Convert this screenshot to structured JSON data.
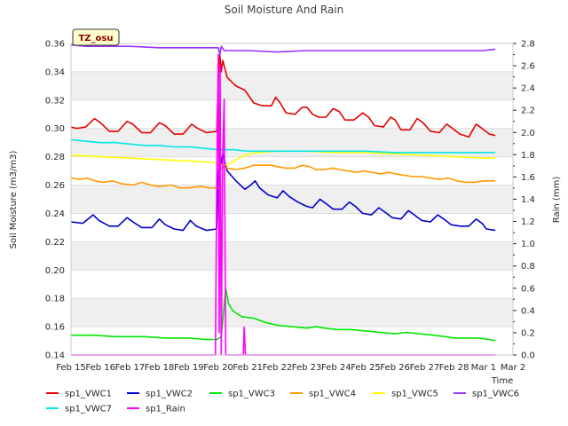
{
  "chart_data": {
    "type": "line",
    "title": "Soil Moisture And Rain",
    "badge": "TZ_osu",
    "xlabel": "Time",
    "ylabel_left": "Soil Moisture (m3/m3)",
    "ylabel_right": "Rain (mm)",
    "x_tick_labels": [
      "Feb 15",
      "Feb 16",
      "Feb 17",
      "Feb 18",
      "Feb 19",
      "Feb 20",
      "Feb 21",
      "Feb 22",
      "Feb 23",
      "Feb 24",
      "Feb 25",
      "Feb 26",
      "Feb 27",
      "Feb 28",
      "Mar 1",
      "Mar 2"
    ],
    "xlim_days": [
      0,
      15
    ],
    "ylim_left": [
      0.14,
      0.36
    ],
    "ylim_right": [
      0.0,
      2.8
    ],
    "y_ticks_left": [
      "0.14",
      "0.16",
      "0.18",
      "0.20",
      "0.22",
      "0.24",
      "0.26",
      "0.28",
      "0.30",
      "0.32",
      "0.34",
      "0.36"
    ],
    "y_ticks_right": [
      "0.0",
      "0.2",
      "0.4",
      "0.6",
      "0.8",
      "1.0",
      "1.2",
      "1.4",
      "1.6",
      "1.8",
      "2.0",
      "2.2",
      "2.4",
      "2.6",
      "2.8"
    ],
    "grid": "horizontal bands",
    "legend_position": "bottom",
    "series": [
      {
        "name": "sp1_VWC1",
        "color": "#e60000",
        "axis": "left",
        "points": [
          [
            0,
            0.301
          ],
          [
            0.2,
            0.3
          ],
          [
            0.5,
            0.301
          ],
          [
            0.8,
            0.307
          ],
          [
            1.0,
            0.304
          ],
          [
            1.3,
            0.298
          ],
          [
            1.6,
            0.298
          ],
          [
            1.9,
            0.305
          ],
          [
            2.1,
            0.303
          ],
          [
            2.4,
            0.297
          ],
          [
            2.7,
            0.297
          ],
          [
            3.0,
            0.304
          ],
          [
            3.2,
            0.302
          ],
          [
            3.5,
            0.296
          ],
          [
            3.8,
            0.296
          ],
          [
            4.1,
            0.303
          ],
          [
            4.3,
            0.3
          ],
          [
            4.6,
            0.297
          ],
          [
            4.95,
            0.298
          ],
          [
            5.0,
            0.335
          ],
          [
            5.05,
            0.352
          ],
          [
            5.1,
            0.34
          ],
          [
            5.15,
            0.348
          ],
          [
            5.3,
            0.336
          ],
          [
            5.6,
            0.33
          ],
          [
            5.9,
            0.327
          ],
          [
            6.2,
            0.318
          ],
          [
            6.5,
            0.316
          ],
          [
            6.8,
            0.316
          ],
          [
            6.95,
            0.322
          ],
          [
            7.1,
            0.318
          ],
          [
            7.3,
            0.311
          ],
          [
            7.6,
            0.31
          ],
          [
            7.85,
            0.315
          ],
          [
            8.0,
            0.315
          ],
          [
            8.2,
            0.31
          ],
          [
            8.4,
            0.308
          ],
          [
            8.65,
            0.308
          ],
          [
            8.9,
            0.314
          ],
          [
            9.1,
            0.312
          ],
          [
            9.3,
            0.306
          ],
          [
            9.6,
            0.306
          ],
          [
            9.9,
            0.311
          ],
          [
            10.1,
            0.308
          ],
          [
            10.3,
            0.302
          ],
          [
            10.6,
            0.301
          ],
          [
            10.85,
            0.308
          ],
          [
            11.0,
            0.306
          ],
          [
            11.2,
            0.299
          ],
          [
            11.5,
            0.299
          ],
          [
            11.75,
            0.307
          ],
          [
            11.95,
            0.304
          ],
          [
            12.2,
            0.298
          ],
          [
            12.5,
            0.297
          ],
          [
            12.75,
            0.303
          ],
          [
            12.95,
            0.3
          ],
          [
            13.2,
            0.296
          ],
          [
            13.5,
            0.294
          ],
          [
            13.75,
            0.303
          ],
          [
            13.95,
            0.3
          ],
          [
            14.2,
            0.296
          ],
          [
            14.4,
            0.295
          ]
        ]
      },
      {
        "name": "sp1_VWC2",
        "color": "#0000cc",
        "axis": "left",
        "points": [
          [
            0,
            0.234
          ],
          [
            0.4,
            0.233
          ],
          [
            0.75,
            0.239
          ],
          [
            0.95,
            0.235
          ],
          [
            1.3,
            0.231
          ],
          [
            1.6,
            0.231
          ],
          [
            1.9,
            0.237
          ],
          [
            2.1,
            0.234
          ],
          [
            2.4,
            0.23
          ],
          [
            2.75,
            0.23
          ],
          [
            3.0,
            0.236
          ],
          [
            3.2,
            0.232
          ],
          [
            3.5,
            0.229
          ],
          [
            3.8,
            0.228
          ],
          [
            4.05,
            0.235
          ],
          [
            4.25,
            0.231
          ],
          [
            4.6,
            0.228
          ],
          [
            4.95,
            0.229
          ],
          [
            5.0,
            0.27
          ],
          [
            5.05,
            0.283
          ],
          [
            5.1,
            0.275
          ],
          [
            5.15,
            0.282
          ],
          [
            5.3,
            0.27
          ],
          [
            5.6,
            0.263
          ],
          [
            5.9,
            0.257
          ],
          [
            6.1,
            0.26
          ],
          [
            6.25,
            0.263
          ],
          [
            6.4,
            0.258
          ],
          [
            6.7,
            0.253
          ],
          [
            7.0,
            0.251
          ],
          [
            7.2,
            0.256
          ],
          [
            7.4,
            0.252
          ],
          [
            7.7,
            0.248
          ],
          [
            8.0,
            0.245
          ],
          [
            8.2,
            0.244
          ],
          [
            8.45,
            0.25
          ],
          [
            8.65,
            0.247
          ],
          [
            8.9,
            0.243
          ],
          [
            9.2,
            0.243
          ],
          [
            9.45,
            0.248
          ],
          [
            9.65,
            0.245
          ],
          [
            9.9,
            0.24
          ],
          [
            10.2,
            0.239
          ],
          [
            10.45,
            0.244
          ],
          [
            10.65,
            0.241
          ],
          [
            10.9,
            0.237
          ],
          [
            11.2,
            0.236
          ],
          [
            11.45,
            0.242
          ],
          [
            11.65,
            0.239
          ],
          [
            11.9,
            0.235
          ],
          [
            12.2,
            0.234
          ],
          [
            12.45,
            0.239
          ],
          [
            12.65,
            0.236
          ],
          [
            12.9,
            0.232
          ],
          [
            13.2,
            0.231
          ],
          [
            13.5,
            0.231
          ],
          [
            13.75,
            0.236
          ],
          [
            13.95,
            0.233
          ],
          [
            14.1,
            0.229
          ],
          [
            14.4,
            0.228
          ]
        ]
      },
      {
        "name": "sp1_VWC3",
        "color": "#00e600",
        "axis": "left",
        "points": [
          [
            0,
            0.154
          ],
          [
            0.8,
            0.154
          ],
          [
            1.5,
            0.153
          ],
          [
            2.5,
            0.153
          ],
          [
            3.2,
            0.152
          ],
          [
            4.0,
            0.152
          ],
          [
            4.6,
            0.151
          ],
          [
            4.95,
            0.151
          ],
          [
            5.1,
            0.153
          ],
          [
            5.2,
            0.175
          ],
          [
            5.25,
            0.187
          ],
          [
            5.35,
            0.176
          ],
          [
            5.5,
            0.171
          ],
          [
            5.8,
            0.167
          ],
          [
            6.2,
            0.166
          ],
          [
            6.6,
            0.163
          ],
          [
            7.0,
            0.161
          ],
          [
            7.5,
            0.16
          ],
          [
            8.0,
            0.159
          ],
          [
            8.3,
            0.16
          ],
          [
            8.6,
            0.159
          ],
          [
            9.0,
            0.158
          ],
          [
            9.5,
            0.158
          ],
          [
            10.0,
            0.157
          ],
          [
            10.5,
            0.156
          ],
          [
            11.0,
            0.155
          ],
          [
            11.4,
            0.156
          ],
          [
            11.8,
            0.155
          ],
          [
            12.3,
            0.154
          ],
          [
            12.7,
            0.153
          ],
          [
            13.0,
            0.152
          ],
          [
            13.5,
            0.152
          ],
          [
            13.8,
            0.152
          ],
          [
            14.2,
            0.151
          ],
          [
            14.4,
            0.15
          ]
        ]
      },
      {
        "name": "sp1_VWC4",
        "color": "#ff9900",
        "axis": "left",
        "points": [
          [
            0,
            0.265
          ],
          [
            0.3,
            0.264
          ],
          [
            0.55,
            0.265
          ],
          [
            0.8,
            0.263
          ],
          [
            1.1,
            0.262
          ],
          [
            1.4,
            0.263
          ],
          [
            1.7,
            0.261
          ],
          [
            2.1,
            0.26
          ],
          [
            2.4,
            0.262
          ],
          [
            2.7,
            0.26
          ],
          [
            3.0,
            0.259
          ],
          [
            3.4,
            0.26
          ],
          [
            3.7,
            0.258
          ],
          [
            4.0,
            0.258
          ],
          [
            4.4,
            0.259
          ],
          [
            4.7,
            0.258
          ],
          [
            5.0,
            0.258
          ],
          [
            5.05,
            0.27
          ],
          [
            5.15,
            0.273
          ],
          [
            5.3,
            0.272
          ],
          [
            5.6,
            0.271
          ],
          [
            5.9,
            0.272
          ],
          [
            6.2,
            0.274
          ],
          [
            6.5,
            0.274
          ],
          [
            6.8,
            0.274
          ],
          [
            7.0,
            0.273
          ],
          [
            7.3,
            0.272
          ],
          [
            7.6,
            0.272
          ],
          [
            7.85,
            0.274
          ],
          [
            8.1,
            0.273
          ],
          [
            8.3,
            0.271
          ],
          [
            8.6,
            0.271
          ],
          [
            8.9,
            0.272
          ],
          [
            9.1,
            0.271
          ],
          [
            9.4,
            0.27
          ],
          [
            9.7,
            0.269
          ],
          [
            9.95,
            0.27
          ],
          [
            10.2,
            0.269
          ],
          [
            10.5,
            0.268
          ],
          [
            10.8,
            0.269
          ],
          [
            11.0,
            0.268
          ],
          [
            11.3,
            0.267
          ],
          [
            11.6,
            0.266
          ],
          [
            11.9,
            0.266
          ],
          [
            12.2,
            0.265
          ],
          [
            12.5,
            0.264
          ],
          [
            12.8,
            0.265
          ],
          [
            13.1,
            0.263
          ],
          [
            13.4,
            0.262
          ],
          [
            13.7,
            0.262
          ],
          [
            14.0,
            0.263
          ],
          [
            14.4,
            0.263
          ]
        ]
      },
      {
        "name": "sp1_VWC5",
        "color": "#ffff00",
        "axis": "left",
        "points": [
          [
            0,
            0.281
          ],
          [
            1.0,
            0.28
          ],
          [
            2.0,
            0.279
          ],
          [
            3.0,
            0.278
          ],
          [
            4.0,
            0.277
          ],
          [
            4.8,
            0.276
          ],
          [
            5.0,
            0.275
          ],
          [
            5.3,
            0.274
          ],
          [
            5.6,
            0.278
          ],
          [
            5.9,
            0.281
          ],
          [
            6.3,
            0.283
          ],
          [
            7.0,
            0.284
          ],
          [
            8.0,
            0.284
          ],
          [
            9.0,
            0.283
          ],
          [
            10.0,
            0.283
          ],
          [
            11.0,
            0.282
          ],
          [
            12.0,
            0.281
          ],
          [
            13.0,
            0.28
          ],
          [
            14.0,
            0.279
          ],
          [
            14.4,
            0.279
          ]
        ]
      },
      {
        "name": "sp1_VWC6",
        "color": "#9933ff",
        "axis": "left",
        "points": [
          [
            0,
            0.359
          ],
          [
            0.5,
            0.358
          ],
          [
            1.0,
            0.358
          ],
          [
            2.0,
            0.358
          ],
          [
            3.0,
            0.357
          ],
          [
            4.0,
            0.357
          ],
          [
            4.9,
            0.357
          ],
          [
            5.0,
            0.357
          ],
          [
            5.05,
            0.352
          ],
          [
            5.1,
            0.358
          ],
          [
            5.2,
            0.355
          ],
          [
            5.5,
            0.355
          ],
          [
            6.0,
            0.355
          ],
          [
            7.0,
            0.354
          ],
          [
            8.0,
            0.355
          ],
          [
            9.0,
            0.355
          ],
          [
            10.0,
            0.355
          ],
          [
            11.0,
            0.355
          ],
          [
            12.0,
            0.355
          ],
          [
            13.0,
            0.355
          ],
          [
            14.0,
            0.355
          ],
          [
            14.4,
            0.356
          ]
        ]
      },
      {
        "name": "sp1_VWC7",
        "color": "#00e6e6",
        "axis": "left",
        "points": [
          [
            0,
            0.292
          ],
          [
            0.5,
            0.291
          ],
          [
            1.0,
            0.29
          ],
          [
            1.5,
            0.29
          ],
          [
            2.0,
            0.289
          ],
          [
            2.5,
            0.288
          ],
          [
            3.0,
            0.288
          ],
          [
            3.5,
            0.287
          ],
          [
            4.0,
            0.287
          ],
          [
            4.5,
            0.286
          ],
          [
            5.0,
            0.285
          ],
          [
            5.5,
            0.285
          ],
          [
            6.0,
            0.284
          ],
          [
            6.5,
            0.284
          ],
          [
            7.0,
            0.284
          ],
          [
            8.0,
            0.284
          ],
          [
            9.0,
            0.284
          ],
          [
            10.0,
            0.284
          ],
          [
            11.0,
            0.283
          ],
          [
            12.0,
            0.283
          ],
          [
            13.0,
            0.283
          ],
          [
            14.0,
            0.283
          ],
          [
            14.4,
            0.283
          ]
        ]
      },
      {
        "name": "sp1_Rain",
        "color": "#ff00ff",
        "axis": "right",
        "points": [
          [
            0,
            0.0
          ],
          [
            4.9,
            0.0
          ],
          [
            4.95,
            1.6
          ],
          [
            5.0,
            2.7
          ],
          [
            5.03,
            0.2
          ],
          [
            5.06,
            2.6
          ],
          [
            5.1,
            0.0
          ],
          [
            5.15,
            1.8
          ],
          [
            5.2,
            2.3
          ],
          [
            5.25,
            0.0
          ],
          [
            5.4,
            0.0
          ],
          [
            5.85,
            0.0
          ],
          [
            5.88,
            0.25
          ],
          [
            5.92,
            0.0
          ],
          [
            14.4,
            0.0
          ]
        ]
      }
    ]
  }
}
